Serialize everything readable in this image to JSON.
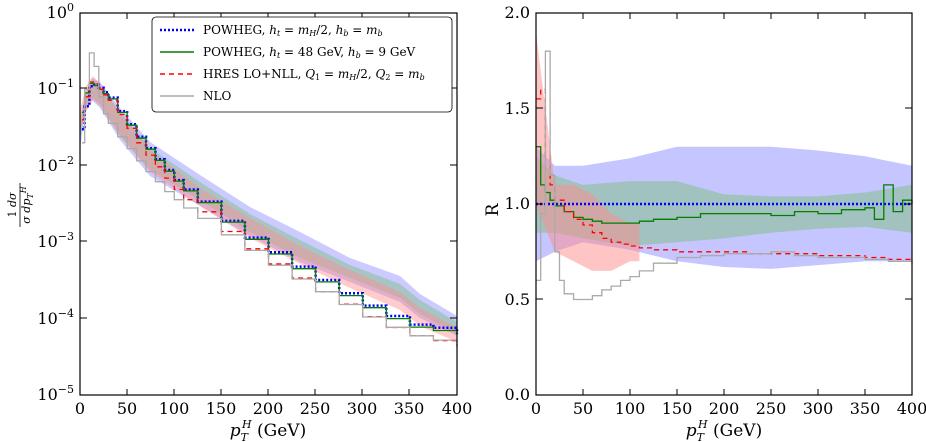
{
  "chart_data": [
    {
      "type": "line",
      "panel": "left",
      "xlabel": "p_T^H (GeV)",
      "ylabel": "1/σ dσ/dp_T^H",
      "xlim": [
        0,
        400
      ],
      "ylim": [
        1e-05,
        1
      ],
      "yscale": "log",
      "x_ticks": [
        "0",
        "50",
        "100",
        "150",
        "200",
        "250",
        "300",
        "350",
        "400"
      ],
      "y_ticks": [
        "10^0",
        "10^-1",
        "10^-2",
        "10^-3",
        "10^-4",
        "10^-5"
      ],
      "legend_position": "top-right",
      "series": [
        {
          "name": "POWHEG, h_t = m_H/2, h_b = m_b",
          "color": "#0000ff",
          "style": "dotted",
          "x": [
            2,
            5,
            10,
            15,
            20,
            25,
            30,
            40,
            50,
            60,
            70,
            80,
            90,
            100,
            110,
            125,
            150,
            175,
            200,
            225,
            250,
            275,
            300,
            325,
            350,
            375,
            400
          ],
          "y": [
            0.03,
            0.06,
            0.11,
            0.115,
            0.105,
            0.092,
            0.078,
            0.052,
            0.035,
            0.024,
            0.017,
            0.0122,
            0.0088,
            0.0065,
            0.0049,
            0.0034,
            0.0019,
            0.00115,
            0.00074,
            0.00048,
            0.00032,
            0.000215,
            0.000148,
            0.000108,
            8.35e-05,
            7.57e-05,
            6.29e-05
          ]
        },
        {
          "name": "POWHEG, h_t = 48 GeV, h_b = 9 GeV",
          "color": "#007f00",
          "style": "solid",
          "x": [
            2,
            5,
            10,
            15,
            20,
            25,
            30,
            40,
            50,
            60,
            70,
            80,
            90,
            100,
            110,
            125,
            150,
            175,
            200,
            225,
            250,
            275,
            300,
            325,
            350,
            375,
            400
          ],
          "y": [
            0.05,
            0.09,
            0.12,
            0.112,
            0.1,
            0.088,
            0.075,
            0.05,
            0.034,
            0.023,
            0.0165,
            0.0118,
            0.0085,
            0.0063,
            0.0047,
            0.0033,
            0.00183,
            0.00109,
            0.0007,
            0.00045,
            0.000302,
            0.0002,
            0.000139,
            0.0001,
            7.75e-05,
            6.98e-05,
            6.22e-05
          ]
        },
        {
          "name": "HRES LO+NLL, Q_1 = m_H/2, Q_2 = m_b",
          "color": "#ff0000",
          "style": "dashed",
          "x": [
            2,
            5,
            10,
            15,
            20,
            25,
            30,
            40,
            50,
            60,
            70,
            80,
            90,
            100,
            110,
            125,
            150,
            175,
            200,
            225,
            250,
            275,
            300,
            325,
            350,
            375,
            400
          ],
          "y": [
            0.04,
            0.08,
            0.125,
            0.118,
            0.1,
            0.085,
            0.072,
            0.047,
            0.031,
            0.02,
            0.0138,
            0.0097,
            0.0069,
            0.0049,
            0.0036,
            0.0025,
            0.00138,
            0.00082,
            0.00052,
            0.00034,
            0.000225,
            0.000155,
            0.000106,
            7.65e-05,
            5.95e-05,
            5.15e-05,
            4.4e-05
          ]
        },
        {
          "name": "NLO",
          "color": "#aaaaaa",
          "style": "solid",
          "x": [
            2,
            5,
            10,
            15,
            20,
            25,
            30,
            40,
            50,
            60,
            70,
            80,
            90,
            100,
            110,
            125,
            150,
            175,
            200,
            225,
            250,
            275,
            300,
            325,
            350,
            375,
            400
          ],
          "y": [
            0.02,
            0.1,
            0.3,
            0.2,
            0.08,
            0.048,
            0.036,
            0.024,
            0.0168,
            0.0116,
            0.0084,
            0.0062,
            0.0046,
            0.0036,
            0.0028,
            0.00205,
            0.00125,
            0.00078,
            0.0005,
            0.00033,
            0.000225,
            0.000153,
            0.000105,
            7.7e-05,
            5.95e-05,
            5.23e-05,
            4.3e-05
          ]
        }
      ]
    },
    {
      "type": "line",
      "panel": "right",
      "xlabel": "p_T^H (GeV)",
      "ylabel": "R",
      "xlim": [
        0,
        400
      ],
      "ylim": [
        0.0,
        2.0
      ],
      "x_ticks": [
        "0",
        "50",
        "100",
        "150",
        "200",
        "250",
        "300",
        "350",
        "400"
      ],
      "y_ticks": [
        "0.0",
        "0.5",
        "1.0",
        "1.5",
        "2.0"
      ],
      "series": [
        {
          "color": "#0000ff",
          "style": "dotted",
          "x": [
            0,
            400
          ],
          "y": [
            1.0,
            1.0
          ]
        },
        {
          "color": "#007f00",
          "style": "solid",
          "x": [
            0,
            5,
            10,
            15,
            20,
            30,
            40,
            50,
            60,
            70,
            80,
            90,
            100,
            110,
            125,
            150,
            175,
            200,
            225,
            250,
            275,
            300,
            325,
            350,
            360,
            370,
            380,
            390,
            400
          ],
          "y": [
            1.3,
            1.1,
            1.06,
            1.02,
            0.99,
            0.96,
            0.93,
            0.92,
            0.91,
            0.9,
            0.9,
            0.9,
            0.9,
            0.91,
            0.92,
            0.93,
            0.95,
            0.95,
            0.95,
            0.94,
            0.96,
            0.95,
            0.97,
            0.98,
            0.92,
            1.1,
            0.96,
            1.02,
            1.0
          ]
        },
        {
          "color": "#ff0000",
          "style": "dashed",
          "x": [
            0,
            5,
            10,
            15,
            20,
            30,
            40,
            50,
            60,
            70,
            80,
            90,
            100,
            110,
            125,
            150,
            175,
            200,
            225,
            250,
            275,
            300,
            325,
            350,
            375,
            400
          ],
          "y": [
            1.55,
            1.6,
            1.25,
            1.1,
            1.02,
            0.96,
            0.92,
            0.89,
            0.85,
            0.82,
            0.8,
            0.79,
            0.78,
            0.77,
            0.76,
            0.75,
            0.75,
            0.75,
            0.74,
            0.74,
            0.74,
            0.73,
            0.73,
            0.72,
            0.71,
            0.7
          ]
        },
        {
          "color": "#aaaaaa",
          "style": "solid",
          "x": [
            0,
            5,
            10,
            15,
            20,
            25,
            30,
            40,
            50,
            60,
            70,
            80,
            90,
            100,
            110,
            125,
            150,
            175,
            200,
            225,
            250,
            275,
            300,
            325,
            350,
            375,
            400
          ],
          "y": [
            0.6,
            0.95,
            1.8,
            1.15,
            0.75,
            0.6,
            0.53,
            0.5,
            0.5,
            0.52,
            0.55,
            0.57,
            0.6,
            0.62,
            0.65,
            0.69,
            0.72,
            0.73,
            0.74,
            0.74,
            0.75,
            0.73,
            0.72,
            0.72,
            0.71,
            0.7,
            0.68
          ]
        }
      ],
      "bands": [
        {
          "color": "#8c8cff",
          "x": [
            0,
            20,
            50,
            100,
            150,
            200,
            250,
            300,
            350,
            400
          ],
          "low": [
            0.7,
            0.75,
            0.8,
            0.76,
            0.7,
            0.67,
            0.66,
            0.68,
            0.7,
            0.7
          ],
          "high": [
            1.3,
            1.2,
            1.2,
            1.24,
            1.3,
            1.3,
            1.3,
            1.28,
            1.25,
            1.2
          ]
        },
        {
          "color": "#7fbf7f",
          "x": [
            0,
            20,
            50,
            100,
            150,
            200,
            250,
            300,
            350,
            400
          ],
          "low": [
            0.85,
            0.85,
            0.82,
            0.78,
            0.8,
            0.82,
            0.85,
            0.87,
            0.88,
            0.85
          ],
          "high": [
            1.25,
            1.15,
            1.1,
            1.12,
            1.12,
            1.05,
            1.04,
            1.04,
            1.06,
            1.1
          ]
        },
        {
          "color": "#ff8c8c",
          "x": [
            0,
            20,
            40,
            60,
            80,
            100,
            110
          ],
          "low": [
            1.0,
            0.75,
            0.7,
            0.65,
            0.65,
            0.7,
            0.7
          ],
          "high": [
            1.9,
            1.1,
            1.1,
            1.05,
            0.95,
            0.9,
            0.9
          ]
        }
      ]
    }
  ]
}
